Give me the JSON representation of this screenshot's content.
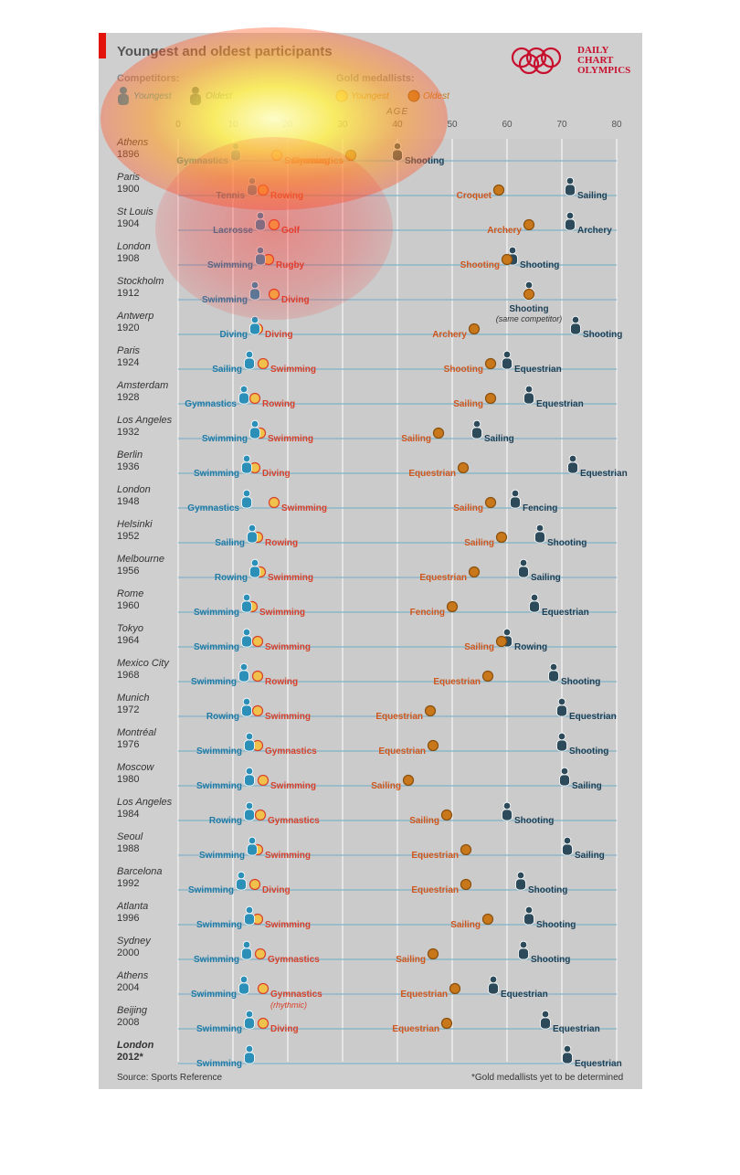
{
  "header": {
    "title": "Youngest and oldest participants",
    "brand_line1": "DAILY",
    "brand_line2": "CHART",
    "brand_line3": "OLYMPICS"
  },
  "legend": {
    "competitors_label": "Competitors:",
    "gold_label": "Gold medallists:",
    "youngest": "Youngest",
    "oldest": "Oldest"
  },
  "footer": {
    "source": "Source: Sports Reference",
    "footnote": "*Gold medallists yet to be determined"
  },
  "colors": {
    "competitor_youngest": "#2b8fb8",
    "competitor_oldest": "#2c4a5a",
    "gold_youngest": "#f0c24b",
    "gold_oldest": "#c8781a",
    "sport_young_comp": "#1f7aa6",
    "sport_young_gold": "#d8402a",
    "sport_old_gold": "#d0561c",
    "sport_old_comp": "#1d3f55"
  },
  "chart_data": {
    "type": "scatter",
    "xlabel": "AGE",
    "xlim": [
      0,
      80
    ],
    "xticks": [
      0,
      10,
      20,
      30,
      40,
      50,
      60,
      70,
      80
    ],
    "series": [
      {
        "name": "Competitors: Youngest"
      },
      {
        "name": "Competitors: Oldest"
      },
      {
        "name": "Gold medallists: Youngest"
      },
      {
        "name": "Gold medallists: Oldest"
      }
    ],
    "games": [
      {
        "city": "Athens",
        "year": "1896",
        "cy": 10.5,
        "cys": "Gymnastics",
        "gy": 18,
        "gys": "Swimming",
        "go": 31.5,
        "gos": "Gymnastics",
        "co": 40,
        "cos": "Shooting"
      },
      {
        "city": "Paris",
        "year": "1900",
        "cy": 13.5,
        "cys": "Tennis",
        "gy": 15.5,
        "gys": "Rowing",
        "go": 58.5,
        "gos": "Croquet",
        "co": 71.5,
        "cos": "Sailing"
      },
      {
        "city": "St Louis",
        "year": "1904",
        "cy": 15,
        "cys": "Lacrosse",
        "gy": 17.5,
        "gys": "Golf",
        "go": 64,
        "gos": "Archery",
        "co": 71.5,
        "cos": "Archery"
      },
      {
        "city": "London",
        "year": "1908",
        "cy": 15,
        "cys": "Swimming",
        "gy": 16.5,
        "gys": "Rugby",
        "go": 60,
        "gos": "Shooting",
        "co": 61,
        "cos": "Shooting"
      },
      {
        "city": "Stockholm",
        "year": "1912",
        "cy": 14,
        "cys": "Swimming",
        "gy": 17.5,
        "gys": "Diving",
        "go": 64,
        "gos": "",
        "co": 64,
        "cos": "Shooting",
        "note": "(same competitor)"
      },
      {
        "city": "Antwerp",
        "year": "1920",
        "cy": 14,
        "cys": "Diving",
        "gy": 14.5,
        "gys": "Diving",
        "go": 54,
        "gos": "Archery",
        "co": 72.5,
        "cos": "Shooting"
      },
      {
        "city": "Paris",
        "year": "1924",
        "cy": 13,
        "cys": "Sailing",
        "gy": 15.5,
        "gys": "Swimming",
        "go": 57,
        "gos": "Shooting",
        "co": 60,
        "cos": "Equestrian"
      },
      {
        "city": "Amsterdam",
        "year": "1928",
        "cy": 12,
        "cys": "Gymnastics",
        "gy": 14,
        "gys": "Rowing",
        "go": 57,
        "gos": "Sailing",
        "co": 64,
        "cos": "Equestrian"
      },
      {
        "city": "Los Angeles",
        "year": "1932",
        "cy": 14,
        "cys": "Swimming",
        "gy": 15,
        "gys": "Swimming",
        "go": 47.5,
        "gos": "Sailing",
        "co": 54.5,
        "cos": "Sailing"
      },
      {
        "city": "Berlin",
        "year": "1936",
        "cy": 12.5,
        "cys": "Swimming",
        "gy": 14,
        "gys": "Diving",
        "go": 52,
        "gos": "Equestrian",
        "co": 72,
        "cos": "Equestrian"
      },
      {
        "city": "London",
        "year": "1948",
        "cy": 12.5,
        "cys": "Gymnastics",
        "gy": 17.5,
        "gys": "Swimming",
        "go": 57,
        "gos": "Sailing",
        "co": 61.5,
        "cos": "Fencing"
      },
      {
        "city": "Helsinki",
        "year": "1952",
        "cy": 13.5,
        "cys": "Sailing",
        "gy": 14.5,
        "gys": "Rowing",
        "go": 59,
        "gos": "Sailing",
        "co": 66,
        "cos": "Shooting"
      },
      {
        "city": "Melbourne",
        "year": "1956",
        "cy": 14,
        "cys": "Rowing",
        "gy": 15,
        "gys": "Swimming",
        "go": 54,
        "gos": "Equestrian",
        "co": 63,
        "cos": "Sailing"
      },
      {
        "city": "Rome",
        "year": "1960",
        "cy": 12.5,
        "cys": "Swimming",
        "gy": 13.5,
        "gys": "Swimming",
        "go": 50,
        "gos": "Fencing",
        "co": 65,
        "cos": "Equestrian"
      },
      {
        "city": "Tokyo",
        "year": "1964",
        "cy": 12.5,
        "cys": "Swimming",
        "gy": 14.5,
        "gys": "Swimming",
        "go": 59,
        "gos": "Sailing",
        "co": 60,
        "cos": "Rowing"
      },
      {
        "city": "Mexico City",
        "year": "1968",
        "cy": 12,
        "cys": "Swimming",
        "gy": 14.5,
        "gys": "Rowing",
        "go": 56.5,
        "gos": "Equestrian",
        "co": 68.5,
        "cos": "Shooting"
      },
      {
        "city": "Munich",
        "year": "1972",
        "cy": 12.5,
        "cys": "Rowing",
        "gy": 14.5,
        "gys": "Swimming",
        "go": 46,
        "gos": "Equestrian",
        "co": 70,
        "cos": "Equestrian"
      },
      {
        "city": "Montréal",
        "year": "1976",
        "cy": 13,
        "cys": "Swimming",
        "gy": 14.5,
        "gys": "Gymnastics",
        "go": 46.5,
        "gos": "Equestrian",
        "co": 70,
        "cos": "Shooting"
      },
      {
        "city": "Moscow",
        "year": "1980",
        "cy": 13,
        "cys": "Swimming",
        "gy": 15.5,
        "gys": "Swimming",
        "go": 42,
        "gos": "Sailing",
        "co": 70.5,
        "cos": "Sailing"
      },
      {
        "city": "Los Angeles",
        "year": "1984",
        "cy": 13,
        "cys": "Rowing",
        "gy": 15,
        "gys": "Gymnastics",
        "go": 49,
        "gos": "Sailing",
        "co": 60,
        "cos": "Shooting"
      },
      {
        "city": "Seoul",
        "year": "1988",
        "cy": 13.5,
        "cys": "Swimming",
        "gy": 14.5,
        "gys": "Swimming",
        "go": 52.5,
        "gos": "Equestrian",
        "co": 71,
        "cos": "Sailing"
      },
      {
        "city": "Barcelona",
        "year": "1992",
        "cy": 11.5,
        "cys": "Swimming",
        "gy": 14,
        "gys": "Diving",
        "go": 52.5,
        "gos": "Equestrian",
        "co": 62.5,
        "cos": "Shooting"
      },
      {
        "city": "Atlanta",
        "year": "1996",
        "cy": 13,
        "cys": "Swimming",
        "gy": 14.5,
        "gys": "Swimming",
        "go": 56.5,
        "gos": "Sailing",
        "co": 64,
        "cos": "Shooting"
      },
      {
        "city": "Sydney",
        "year": "2000",
        "cy": 12.5,
        "cys": "Swimming",
        "gy": 15,
        "gys": "Gymnastics",
        "go": 46.5,
        "gos": "Sailing",
        "co": 63,
        "cos": "Shooting"
      },
      {
        "city": "Athens",
        "year": "2004",
        "cy": 12,
        "cys": "Swimming",
        "gy": 15.5,
        "gys": "Gymnastics",
        "gys2": "(rhythmic)",
        "go": 50.5,
        "gos": "Equestrian",
        "co": 57.5,
        "cos": "Equestrian"
      },
      {
        "city": "Beijing",
        "year": "2008",
        "cy": 13,
        "cys": "Swimming",
        "gy": 15.5,
        "gys": "Diving",
        "go": 49,
        "gos": "Equestrian",
        "co": 67,
        "cos": "Equestrian"
      },
      {
        "city": "London",
        "year": "2012*",
        "cy": 13,
        "cys": "Swimming",
        "co": 71,
        "cos": "Equestrian"
      }
    ]
  }
}
